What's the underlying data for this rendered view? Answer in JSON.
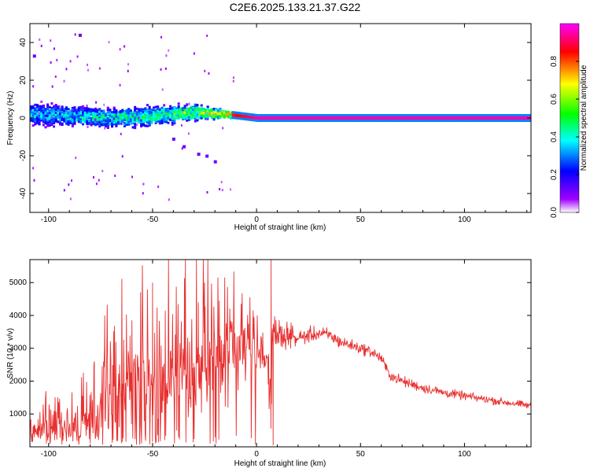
{
  "title": "C2E6.2025.133.21.37.G22",
  "chart_data": [
    {
      "type": "heatmap",
      "xlabel": "Height of straight line (km)",
      "ylabel": "Frequency (Hz)",
      "xlim": [
        -109,
        132
      ],
      "ylim": [
        -50,
        50
      ],
      "x_ticks": [
        -100,
        -50,
        0,
        50,
        100
      ],
      "x_tick_labels": [
        "-100",
        "-50",
        "0",
        "50",
        "100"
      ],
      "y_ticks": [
        -40,
        -20,
        0,
        20,
        40
      ],
      "y_tick_labels": [
        "-40",
        "-20",
        "0",
        "20",
        "40"
      ],
      "grid": false,
      "colorbar": {
        "label": "Normalized spectral amplitude",
        "range": [
          0,
          1
        ],
        "ticks": [
          0,
          0.2,
          0.4,
          0.6,
          0.8
        ],
        "tick_labels": [
          "0.0",
          "0.2",
          "0.4",
          "0.6",
          "0.8"
        ],
        "colors": [
          "#ffffff",
          "#a000ff",
          "#0000ff",
          "#00ffff",
          "#00ff00",
          "#ffff00",
          "#ff0000",
          "#ff00ff"
        ]
      },
      "ridge": {
        "x": [
          -109,
          -90,
          -70,
          -50,
          -30,
          -15,
          0,
          30,
          60,
          100,
          132
        ],
        "center_freq": [
          2,
          1,
          0,
          1,
          3,
          2,
          0,
          0,
          0,
          0,
          0
        ],
        "spread_hz": [
          6,
          5,
          5,
          5,
          4,
          2,
          1,
          1,
          1,
          1,
          1
        ],
        "peak_amplitude": [
          0.35,
          0.4,
          0.45,
          0.5,
          0.6,
          0.8,
          0.95,
          0.95,
          0.95,
          0.95,
          0.95
        ]
      },
      "outliers": {
        "x": [
          -107,
          -85,
          -40,
          -35,
          -28,
          -24,
          -20
        ],
        "y": [
          33,
          44,
          -11,
          -15,
          -19,
          -20,
          -23
        ]
      }
    },
    {
      "type": "line",
      "xlabel": "Height of straight line (km)",
      "ylabel": "SNR (10 * v/v)",
      "xlim": [
        -109,
        132
      ],
      "ylim": [
        0,
        5700
      ],
      "x_ticks": [
        -100,
        -50,
        0,
        50,
        100
      ],
      "x_tick_labels": [
        "-100",
        "-50",
        "0",
        "50",
        "100"
      ],
      "y_ticks": [
        1000,
        2000,
        3000,
        4000,
        5000
      ],
      "y_tick_labels": [
        "1000",
        "2000",
        "3000",
        "4000",
        "5000"
      ],
      "grid": false,
      "series": [
        {
          "color": "#e83030",
          "envelope_x": [
            -109,
            -100,
            -90,
            -80,
            -76,
            -74,
            -70,
            -60,
            -52,
            -45,
            -40,
            -30,
            -25,
            -20,
            -15,
            -10,
            -5,
            0,
            5,
            7,
            8,
            10,
            15,
            20,
            25,
            30,
            35,
            40,
            45,
            50,
            55,
            60,
            63,
            65,
            70,
            80,
            90,
            100,
            110,
            120,
            132
          ],
          "envelope_y": [
            500,
            600,
            700,
            800,
            900,
            2000,
            1800,
            1900,
            2200,
            2300,
            2400,
            2400,
            2600,
            2800,
            2600,
            2900,
            3000,
            3000,
            2800,
            1600,
            3300,
            3400,
            3400,
            3300,
            3400,
            3450,
            3400,
            3200,
            3100,
            3000,
            2900,
            2700,
            2300,
            2150,
            2000,
            1800,
            1650,
            1550,
            1450,
            1350,
            1250
          ],
          "noise_amplitude": [
            400,
            500,
            600,
            700,
            800,
            1200,
            1300,
            1500,
            1700,
            1800,
            1800,
            1700,
            1700,
            1600,
            1400,
            1200,
            1000,
            800,
            700,
            1300,
            600,
            500,
            300,
            250,
            220,
            200,
            200,
            180,
            170,
            160,
            160,
            160,
            160,
            150,
            150,
            140,
            130,
            120,
            110,
            110,
            100
          ],
          "spikes_x": [
            -78,
            -73,
            -50,
            -28,
            -25,
            7,
            8
          ],
          "spikes_y": [
            2600,
            4000,
            5000,
            4400,
            5000,
            5700,
            50
          ]
        }
      ]
    }
  ]
}
